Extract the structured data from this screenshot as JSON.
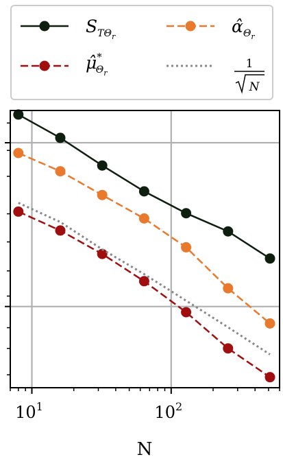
{
  "chart_data": {
    "type": "line",
    "xlabel": "N",
    "ylabel": "",
    "title": "",
    "x_scale": "log",
    "y_scale": "log",
    "x": [
      8,
      16,
      32,
      64,
      128,
      256,
      512
    ],
    "xlim": [
      7,
      600
    ],
    "ylim": [
      0.0232,
      0.149
    ],
    "x_tick_labels": [
      {
        "value": 10,
        "base": "10",
        "exp": "1"
      },
      {
        "value": 100,
        "base": "10",
        "exp": "2"
      }
    ],
    "y_major_ticks": [
      0.04,
      0.12
    ],
    "y_minor_ticks": [
      0.0253,
      0.0302,
      0.0347,
      0.0429,
      0.0508,
      0.0617,
      0.0745,
      0.0958,
      0.114,
      0.137
    ],
    "grid": true,
    "legend_position": "top",
    "series": [
      {
        "label_html": "S<tspan font-size='14' dy='6'>TΘ</tspan><tspan font-size='11' dy='4'>r</tspan>",
        "color": "#0f1f0f",
        "dash": "solid",
        "values": [
          0.145,
          0.124,
          0.103,
          0.0866,
          0.0748,
          0.0662,
          0.0552
        ]
      },
      {
        "label_html": "α̂<tspan font-size='14' dy='6'>Θ</tspan><tspan font-size='11' dy='4'>r</tspan>",
        "color": "#e8792d",
        "dash": "dashed",
        "values": [
          0.112,
          0.0991,
          0.0845,
          0.0722,
          0.0595,
          0.0452,
          0.0357
        ]
      },
      {
        "label_html": "μ̂<tspan font-size='15' dy='-12'>*</tspan><tspan font-size='14' dx='-9' dy='18'>Θ</tspan><tspan font-size='11' dy='4'>r</tspan>",
        "color": "#a00f0f",
        "dash": "dashed",
        "values": [
          0.0756,
          0.0666,
          0.0569,
          0.0474,
          0.0385,
          0.0302,
          0.0249
        ]
      },
      {
        "label_html": "1/√N",
        "color": "#888888",
        "dash": "dotted",
        "markers": false,
        "values": [
          0.0802,
          0.0705,
          0.0587,
          0.0497,
          0.0416,
          0.0348,
          0.029
        ]
      }
    ]
  }
}
